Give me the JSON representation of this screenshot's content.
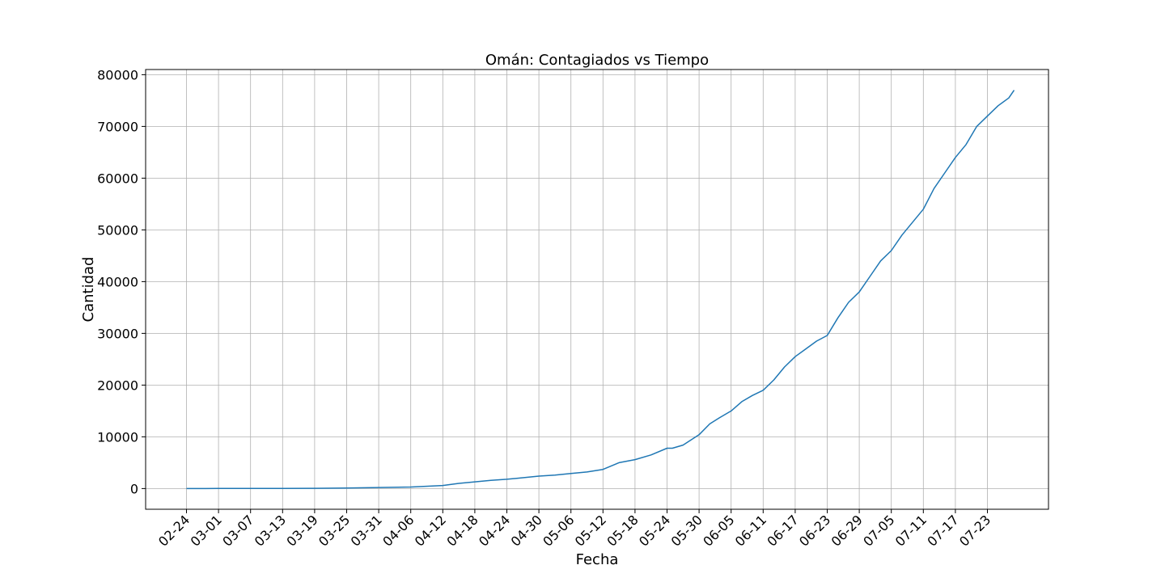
{
  "chart_data": {
    "type": "line",
    "title": "Omán: Contagiados vs Tiempo",
    "xlabel": "Fecha",
    "ylabel": "Cantidad",
    "ylim": [
      -4000,
      81000
    ],
    "yticks": [
      0,
      10000,
      20000,
      30000,
      40000,
      50000,
      60000,
      70000,
      80000
    ],
    "ytick_labels": [
      "0",
      "10000",
      "20000",
      "30000",
      "40000",
      "50000",
      "60000",
      "70000",
      "80000"
    ],
    "grid": true,
    "line_color": "#1f77b4",
    "x_tick_labels": [
      "02-24",
      "03-01",
      "03-07",
      "03-13",
      "03-19",
      "03-25",
      "03-31",
      "04-06",
      "04-12",
      "04-18",
      "04-24",
      "04-30",
      "05-06",
      "05-12",
      "05-18",
      "05-24",
      "05-30",
      "06-05",
      "06-11",
      "06-17",
      "06-23",
      "06-29",
      "07-05",
      "07-11",
      "07-17",
      "07-23"
    ],
    "x_tick_spacing_days": 6,
    "series": [
      {
        "x": [
          "02-24",
          "03-01",
          "03-07",
          "03-13",
          "03-19",
          "03-25",
          "03-31",
          "04-06",
          "04-12",
          "04-15",
          "04-18",
          "04-21",
          "04-24",
          "04-27",
          "04-30",
          "05-03",
          "05-06",
          "05-09",
          "05-12",
          "05-15",
          "05-18",
          "05-21",
          "05-24",
          "05-25",
          "05-27",
          "05-30",
          "06-01",
          "06-03",
          "06-05",
          "06-07",
          "06-09",
          "06-11",
          "06-13",
          "06-15",
          "06-17",
          "06-19",
          "06-21",
          "06-23",
          "06-25",
          "06-27",
          "06-29",
          "07-01",
          "07-03",
          "07-05",
          "07-07",
          "07-09",
          "07-11",
          "07-13",
          "07-15",
          "07-17",
          "07-19",
          "07-21",
          "07-23",
          "07-25",
          "07-27",
          "07-28"
        ],
        "y": [
          0,
          10,
          20,
          30,
          50,
          100,
          200,
          300,
          600,
          1000,
          1300,
          1600,
          1800,
          2100,
          2400,
          2600,
          2900,
          3200,
          3700,
          5000,
          5600,
          6500,
          7800,
          7800,
          8400,
          10400,
          12500,
          13800,
          15000,
          16800,
          18000,
          19000,
          21000,
          23500,
          25500,
          27000,
          28500,
          29600,
          33000,
          36000,
          38000,
          41000,
          44000,
          46000,
          49000,
          51500,
          54000,
          58000,
          61000,
          64000,
          66500,
          70000,
          72000,
          74000,
          75500,
          77000
        ]
      }
    ]
  }
}
